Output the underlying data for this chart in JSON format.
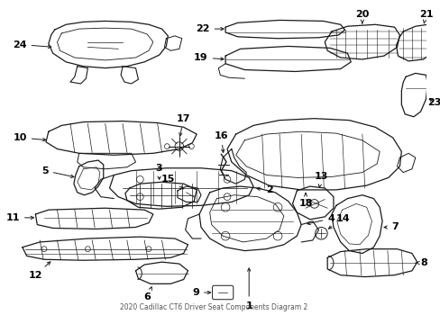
{
  "title": "2020 Cadillac CT6 Driver Seat Components Diagram 2",
  "background_color": "#ffffff",
  "line_color": "#1a1a1a",
  "text_color": "#000000",
  "fig_width": 4.89,
  "fig_height": 3.6,
  "dpi": 100
}
